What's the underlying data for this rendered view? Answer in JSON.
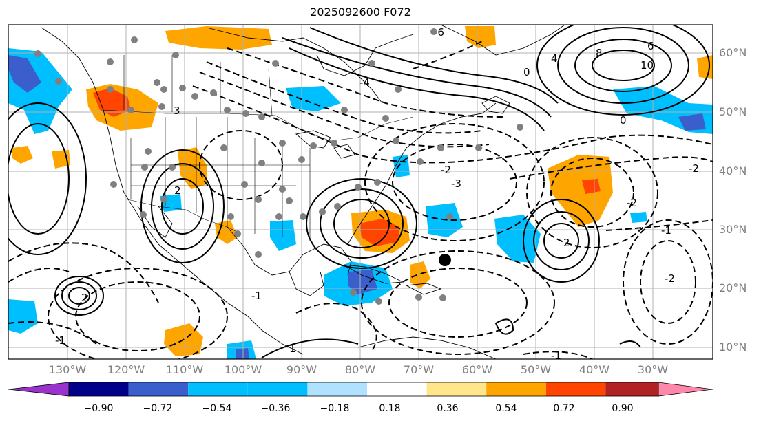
{
  "title": "2025092600 F072",
  "lat_labels": [
    "60°N",
    "50°N",
    "40°N",
    "30°N",
    "20°N",
    "10°N"
  ],
  "lon_labels": [
    "130°W",
    "120°W",
    "110°W",
    "100°W",
    "90°W",
    "80°W",
    "70°W",
    "60°W",
    "50°W",
    "40°W",
    "30°W"
  ],
  "colorbar": {
    "ticks": [
      "−0.90",
      "−0.72",
      "−0.54",
      "−0.36",
      "−0.18",
      "0.18",
      "0.36",
      "0.54",
      "0.72",
      "0.90"
    ],
    "colors": [
      "#9a32cd",
      "#00008b",
      "#3a5fcd",
      "#00bfff",
      "#b0e2ff",
      "#ffffff",
      "#ffe68a",
      "#ffa500",
      "#ff4500",
      "#b22222",
      "#ff88aa"
    ]
  },
  "fill_colors": {
    "orange": "#ffa500",
    "red": "#ff4500",
    "cyan": "#00bfff",
    "blue": "#3a5fcd"
  },
  "contour_labels": [
    "-6",
    "-4",
    "-3",
    "-2",
    "-1",
    "0",
    "1",
    "2",
    "3",
    "4",
    "6",
    "8",
    "10"
  ],
  "storm_marker_icon": "black-dot"
}
